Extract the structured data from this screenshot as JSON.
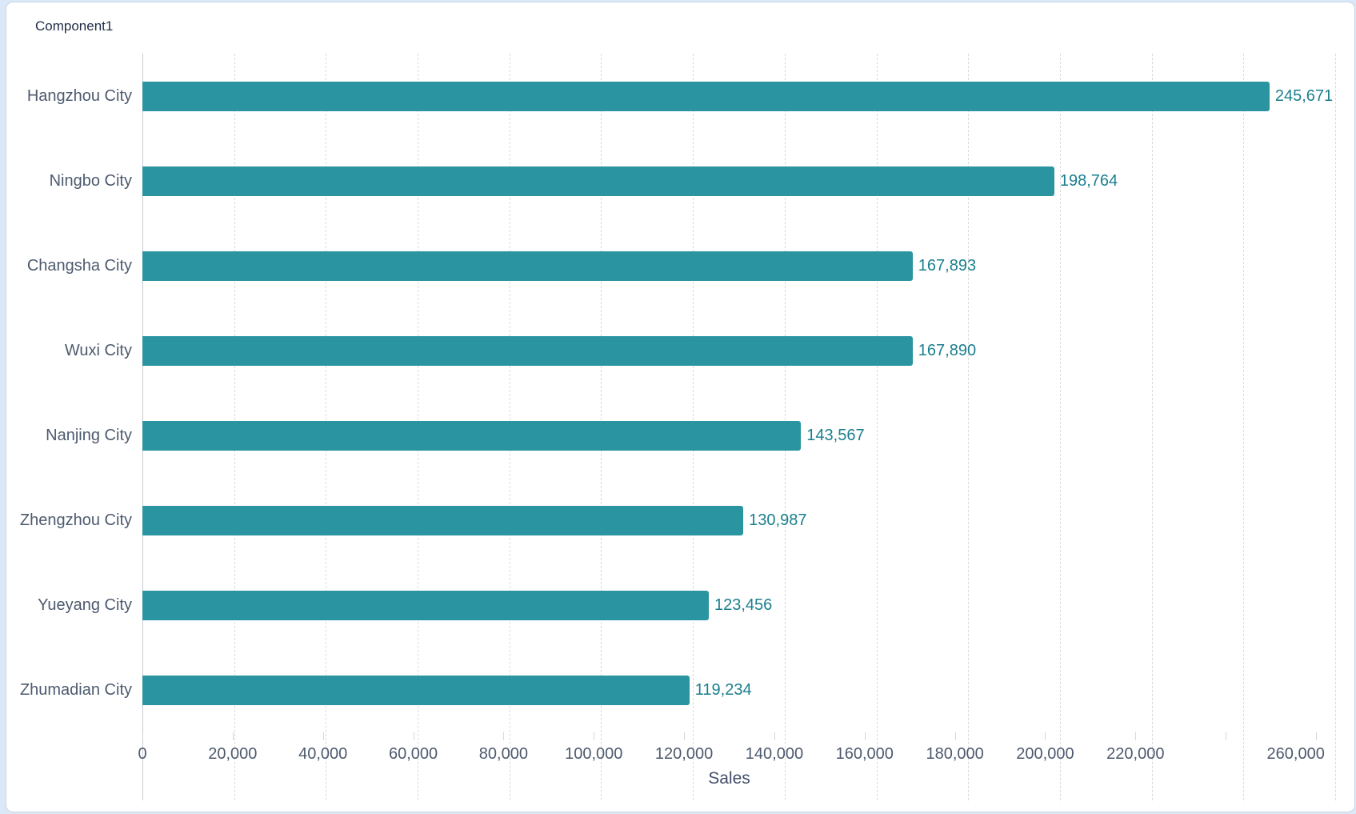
{
  "header": {
    "title": "Component1"
  },
  "chart_data": {
    "type": "bar",
    "orientation": "horizontal",
    "title": "Component1",
    "categories": [
      "Hangzhou City",
      "Ningbo City",
      "Changsha City",
      "Wuxi City",
      "Nanjing City",
      "Zhengzhou City",
      "Yueyang City",
      "Zhumadian City"
    ],
    "values": [
      245671,
      198764,
      167893,
      167890,
      143567,
      130987,
      123456,
      119234
    ],
    "value_labels": [
      "245,671",
      "198,764",
      "167,893",
      "167,890",
      "143,567",
      "130,987",
      "123,456",
      "119,234"
    ],
    "xlabel": "Sales",
    "xlim": [
      0,
      260000
    ],
    "tick_step": 20000,
    "x_tick_labels": [
      "0",
      "20,000",
      "40,000",
      "60,000",
      "80,000",
      "100,000",
      "120,000",
      "140,000",
      "160,000",
      "180,000",
      "200,000",
      "220,000",
      "",
      "260,000"
    ],
    "grid": "vertical-dashed",
    "legend": "none",
    "colors": {
      "bar": "#2a95a1",
      "value_label": "#1b7f8e",
      "category_label": "#4d5a6e",
      "tick_label": "#4d5a6e",
      "title": "#1f2d45",
      "gridline": "#dadada",
      "axis_line": "#c6cbd1"
    }
  }
}
